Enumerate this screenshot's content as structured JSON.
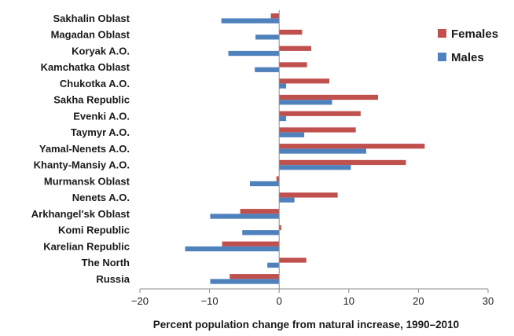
{
  "chart_data": {
    "type": "bar",
    "orientation": "horizontal",
    "categories": [
      "Sakhalin Oblast",
      "Magadan Oblast",
      "Koryak A.O.",
      "Kamchatka Oblast",
      "Chukotka A.O.",
      "Sakha Republic",
      "Evenki A.O.",
      "Taymyr A.O.",
      "Yamal-Nenets A.O.",
      "Khanty-Mansiy A.O.",
      "Murmansk Oblast",
      "Nenets A.O.",
      "Arkhangel'sk Oblast",
      "Komi Republic",
      "Karelian Republic",
      "The North",
      "Russia"
    ],
    "series": [
      {
        "name": "Females",
        "color": "#c0504d",
        "values": [
          -1.2,
          3.3,
          4.6,
          4.0,
          7.2,
          14.2,
          11.7,
          11.0,
          20.9,
          18.2,
          -0.4,
          8.4,
          -5.6,
          0.3,
          -8.2,
          3.9,
          -7.1
        ]
      },
      {
        "name": "Males",
        "color": "#4f81bd",
        "values": [
          -8.3,
          -3.4,
          -7.3,
          -3.5,
          1.0,
          7.6,
          1.0,
          3.6,
          12.5,
          10.3,
          -4.2,
          2.2,
          -9.9,
          -5.3,
          -13.5,
          -1.7,
          -9.9
        ]
      }
    ],
    "xlim": [
      -20,
      30
    ],
    "xticks": [
      -20,
      -10,
      0,
      10,
      20,
      30
    ],
    "xtick_labels": [
      "−20",
      "−10",
      "0",
      "10",
      "20",
      "30"
    ],
    "xlabel": "Percent population  change from natural increase, 1990–2010",
    "ylabel": "",
    "title": "",
    "grid": false,
    "legend_position": "top-right"
  }
}
